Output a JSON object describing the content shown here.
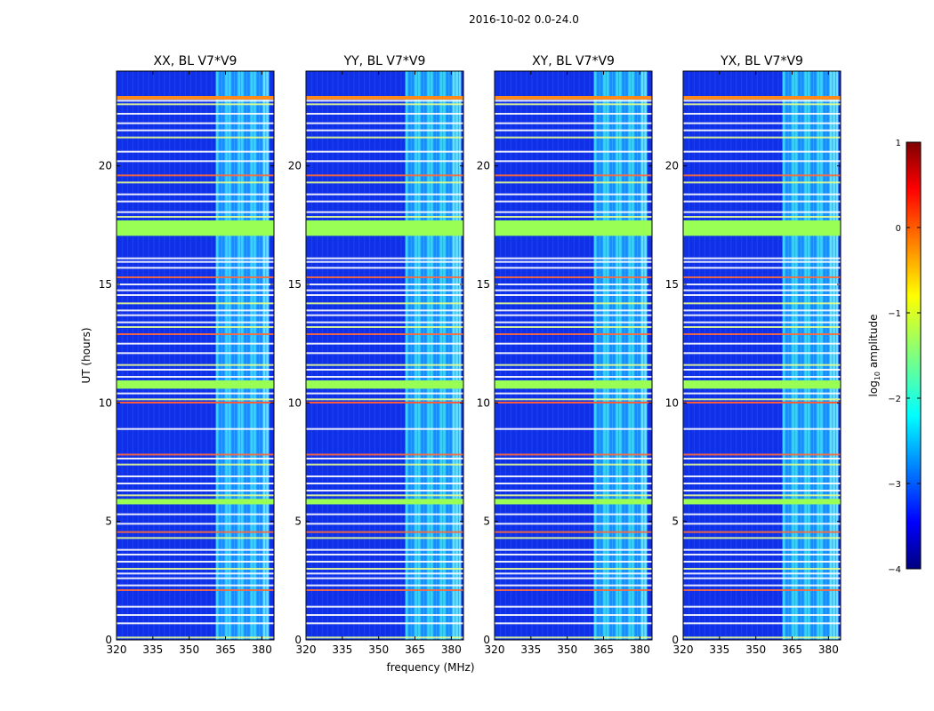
{
  "chart_data": {
    "type": "heatmap",
    "suptitle": "2016-10-02 0.0-24.0",
    "xlabel": "frequency (MHz)",
    "ylabel": "UT (hours)",
    "xlim": [
      320,
      385
    ],
    "ylim": [
      0,
      24
    ],
    "xticks": [
      320,
      335,
      350,
      365,
      380
    ],
    "yticks": [
      0,
      5,
      10,
      15,
      20
    ],
    "panels": [
      {
        "title": "XX, BL V7*V9",
        "strong_band": [
          361,
          383
        ]
      },
      {
        "title": "YY, BL V7*V9",
        "strong_band": [
          361,
          384
        ]
      },
      {
        "title": "XY, BL V7*V9",
        "strong_band": [
          361,
          383
        ]
      },
      {
        "title": "YX, BL V7*V9",
        "strong_band": [
          361,
          384
        ]
      }
    ],
    "colorbar": {
      "label_main": "log",
      "label_sub": "10",
      "label_rest": " amplitude",
      "range": [
        -4,
        1
      ],
      "ticks": [
        -4,
        -3,
        -2,
        -1,
        0,
        1
      ],
      "colormap": "jet"
    },
    "flagged_bands_ut": [
      [
        17.05,
        17.7
      ],
      [
        10.6,
        10.95
      ],
      [
        5.72,
        5.95
      ]
    ],
    "bright_lines_ut": [
      0.1,
      0.7,
      1.05,
      1.4,
      2.1,
      2.3,
      2.6,
      2.8,
      3.0,
      3.3,
      3.6,
      3.8,
      4.3,
      4.55,
      4.9,
      5.3,
      6.1,
      6.3,
      6.6,
      6.9,
      7.4,
      7.65,
      7.82,
      8.9,
      10.15,
      10.4,
      11.1,
      11.4,
      11.6,
      12.1,
      12.5,
      12.9,
      13.2,
      13.4,
      13.7,
      13.9,
      14.2,
      14.55,
      14.75,
      15.0,
      15.3,
      15.7,
      15.95,
      16.1,
      17.85,
      18.05,
      18.5,
      18.8,
      19.3,
      19.6,
      20.2,
      20.6,
      21.2,
      21.5,
      21.8,
      22.2,
      22.6,
      22.75,
      22.9
    ]
  }
}
